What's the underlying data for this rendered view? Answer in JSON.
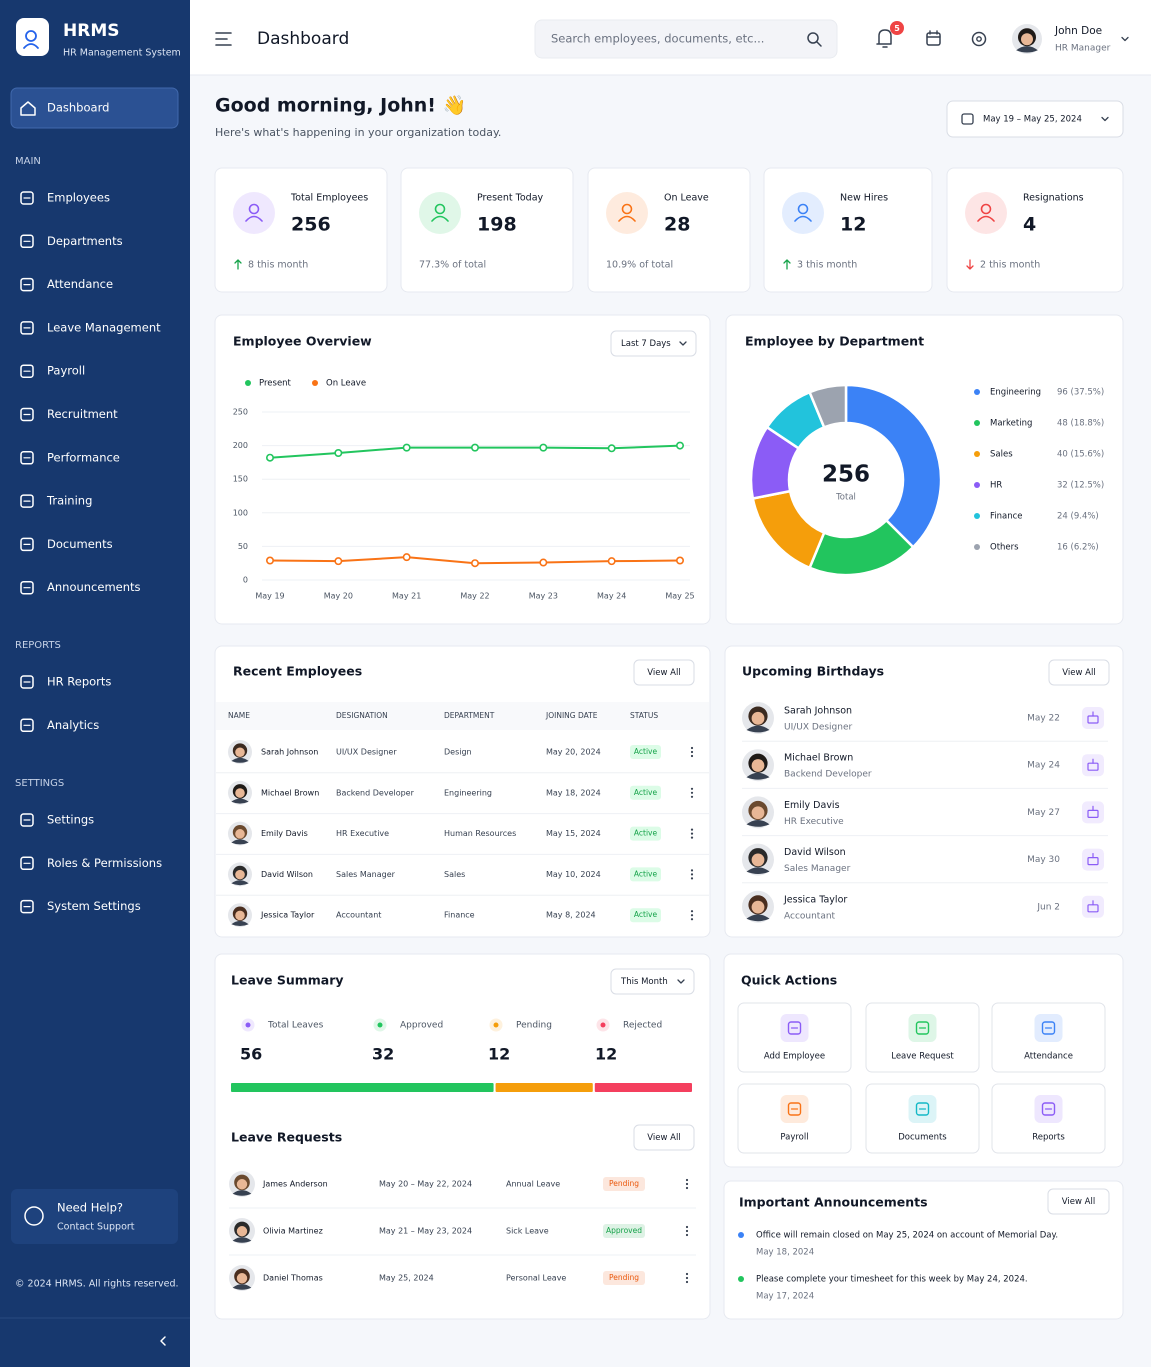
{
  "sidebar": {
    "brand": "HRMS",
    "brand_sub": "HR Management System",
    "active": "Dashboard",
    "sections": [
      {
        "title": "MAIN",
        "items": [
          "Employees",
          "Departments",
          "Attendance",
          "Leave Management",
          "Payroll",
          "Recruitment",
          "Performance",
          "Training",
          "Documents",
          "Announcements"
        ]
      },
      {
        "title": "REPORTS",
        "items": [
          "HR Reports",
          "Analytics"
        ]
      },
      {
        "title": "SETTINGS",
        "items": [
          "Settings",
          "Roles & Permissions",
          "System Settings"
        ]
      }
    ],
    "help_title": "Need Help?",
    "help_link": "Contact Support",
    "copyright": "© 2024 HRMS. All rights reserved."
  },
  "header": {
    "title": "Dashboard",
    "search_placeholder": "Search employees, documents, etc...",
    "notifications": 5,
    "user_name": "John Doe",
    "user_role": "HR Manager"
  },
  "greeting": {
    "title": "Good morning, John! 👋",
    "subtitle": "Here's what's happening in your organization today.",
    "date_range": "May 19 – May 25, 2024"
  },
  "stats": [
    {
      "label": "Total Employees",
      "value": 256,
      "note": "8 this month",
      "trend": "up",
      "color": "#8b5cf6"
    },
    {
      "label": "Present Today",
      "value": 198,
      "note": "77.3% of total",
      "color": "#22c55e"
    },
    {
      "label": "On Leave",
      "value": 28,
      "note": "10.9% of total",
      "color": "#f97316"
    },
    {
      "label": "New Hires",
      "value": 12,
      "note": "3 this month",
      "trend": "up",
      "color": "#3b82f6"
    },
    {
      "label": "Resignations",
      "value": 4,
      "note": "2 this month",
      "trend": "down",
      "color": "#ef4444"
    }
  ],
  "chart_data": [
    {
      "type": "line",
      "title": "Employee Overview",
      "filter": "Last 7 Days",
      "categories": [
        "May 19",
        "May 20",
        "May 21",
        "May 22",
        "May 23",
        "May 24",
        "May 25"
      ],
      "series": [
        {
          "name": "Present",
          "color": "#22c55e",
          "values": [
            182,
            189,
            197,
            197,
            197,
            196,
            200
          ]
        },
        {
          "name": "On Leave",
          "color": "#f97316",
          "values": [
            29,
            28,
            34,
            25,
            26,
            28,
            29
          ]
        }
      ],
      "ylim": [
        0,
        250
      ],
      "yticks": [
        0,
        50,
        100,
        150,
        200,
        250
      ],
      "grid": true
    },
    {
      "type": "pie",
      "title": "Employee by Department",
      "center_value": 256,
      "center_label": "Total",
      "categories": [
        "Engineering",
        "Marketing",
        "Sales",
        "HR",
        "Finance",
        "Others"
      ],
      "values": [
        96,
        48,
        40,
        32,
        24,
        16
      ],
      "value_labels": [
        "96 (37.5%)",
        "48 (18.8%)",
        "40 (15.6%)",
        "32 (12.5%)",
        "24 (9.4%)",
        "16 (6.2%)"
      ],
      "colors": [
        "#3b82f6",
        "#22c55e",
        "#f59e0b",
        "#8b5cf6",
        "#22c3dc",
        "#9ca3af"
      ]
    }
  ],
  "recent_employees": {
    "title": "Recent Employees",
    "action": "View All",
    "columns": [
      "NAME",
      "DESIGNATION",
      "DEPARTMENT",
      "JOINING DATE",
      "STATUS"
    ],
    "rows": [
      [
        "Sarah Johnson",
        "UI/UX Designer",
        "Design",
        "May 20, 2024",
        "Active"
      ],
      [
        "Michael Brown",
        "Backend Developer",
        "Engineering",
        "May 18, 2024",
        "Active"
      ],
      [
        "Emily Davis",
        "HR Executive",
        "Human Resources",
        "May 15, 2024",
        "Active"
      ],
      [
        "David Wilson",
        "Sales Manager",
        "Sales",
        "May 10, 2024",
        "Active"
      ],
      [
        "Jessica Taylor",
        "Accountant",
        "Finance",
        "May 8, 2024",
        "Active"
      ]
    ]
  },
  "birthdays": {
    "title": "Upcoming Birthdays",
    "action": "View All",
    "items": [
      {
        "name": "Sarah Johnson",
        "role": "UI/UX Designer",
        "date": "May 22"
      },
      {
        "name": "Michael Brown",
        "role": "Backend Developer",
        "date": "May 24"
      },
      {
        "name": "Emily Davis",
        "role": "HR Executive",
        "date": "May 27"
      },
      {
        "name": "David Wilson",
        "role": "Sales Manager",
        "date": "May 30"
      },
      {
        "name": "Jessica Taylor",
        "role": "Accountant",
        "date": "Jun 2"
      }
    ]
  },
  "leave_summary": {
    "title": "Leave Summary",
    "filter": "This Month",
    "items": [
      {
        "label": "Total Leaves",
        "value": 56,
        "color": "#8b5cf6"
      },
      {
        "label": "Approved",
        "value": 32,
        "color": "#22c55e"
      },
      {
        "label": "Pending",
        "value": 12,
        "color": "#f59e0b"
      },
      {
        "label": "Rejected",
        "value": 12,
        "color": "#f43f5e"
      }
    ]
  },
  "leave_requests": {
    "title": "Leave Requests",
    "action": "View All",
    "rows": [
      {
        "name": "James Anderson",
        "dates": "May 20 – May 22, 2024",
        "type": "Annual Leave",
        "status": "Pending",
        "color": "#ea580c"
      },
      {
        "name": "Olivia Martinez",
        "dates": "May 21 – May 23, 2024",
        "type": "Sick Leave",
        "status": "Approved",
        "color": "#16a34a"
      },
      {
        "name": "Daniel Thomas",
        "dates": "May 25, 2024",
        "type": "Personal Leave",
        "status": "Pending",
        "color": "#ea580c"
      }
    ]
  },
  "quick_actions": {
    "title": "Quick Actions",
    "items": [
      {
        "label": "Add Employee",
        "color": "#8b5cf6"
      },
      {
        "label": "Leave Request",
        "color": "#22c55e"
      },
      {
        "label": "Attendance",
        "color": "#3b82f6"
      },
      {
        "label": "Payroll",
        "color": "#f97316"
      },
      {
        "label": "Documents",
        "color": "#14b8c6"
      },
      {
        "label": "Reports",
        "color": "#8b5cf6"
      }
    ]
  },
  "announcements": {
    "title": "Important Announcements",
    "action": "View All",
    "items": [
      {
        "text": "Office will remain closed on May 25, 2024 on account of Memorial Day.",
        "date": "May 18, 2024",
        "color": "#3b82f6"
      },
      {
        "text": "Please complete your timesheet for this week by May 24, 2024.",
        "date": "May 17, 2024",
        "color": "#22c55e"
      }
    ]
  }
}
